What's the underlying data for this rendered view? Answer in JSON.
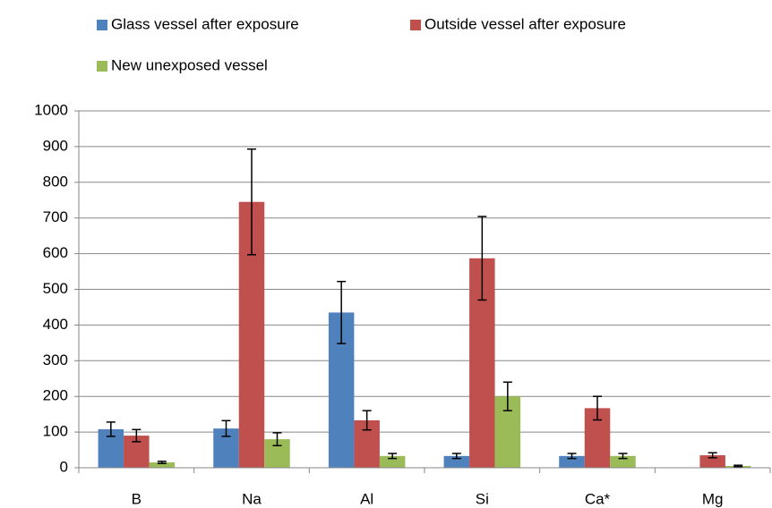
{
  "chart_data": {
    "type": "bar",
    "categories": [
      "B",
      "Na",
      "Al",
      "Si",
      "Ca*",
      "Mg"
    ],
    "series": [
      {
        "name": "Glass vessel after exposure",
        "color": "#4f81bd",
        "values": [
          108,
          110,
          435,
          33,
          33,
          null
        ],
        "errors": [
          20,
          22,
          87,
          7,
          7,
          null
        ]
      },
      {
        "name": "Outside vessel after exposure",
        "color": "#c0504d",
        "values": [
          90,
          745,
          133,
          587,
          167,
          35
        ],
        "errors": [
          17,
          148,
          27,
          117,
          33,
          7
        ]
      },
      {
        "name": "New unexposed vessel",
        "color": "#9bbb59",
        "values": [
          15,
          80,
          33,
          200,
          33,
          5
        ],
        "errors": [
          3,
          18,
          7,
          40,
          7,
          2
        ]
      }
    ],
    "ylim": [
      0,
      1000
    ],
    "yticks": [
      0,
      100,
      200,
      300,
      400,
      500,
      600,
      700,
      800,
      900,
      1000
    ],
    "grid": true
  }
}
